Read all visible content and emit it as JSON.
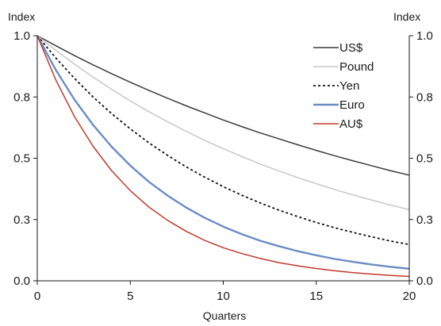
{
  "chart_data": {
    "type": "line",
    "title": "",
    "xlabel": "Quarters",
    "ylabel_left": "Index",
    "ylabel_right": "Index",
    "xlim": [
      0,
      20
    ],
    "ylim": [
      0.0,
      1.0
    ],
    "x_ticks": [
      0,
      5,
      10,
      15,
      20
    ],
    "x_tick_labels": [
      "0",
      "5",
      "10",
      "15",
      "20"
    ],
    "y_ticks": [
      0.0,
      0.25,
      0.5,
      0.75,
      1.0
    ],
    "y_tick_labels": [
      "0.0",
      "0.3",
      "0.5",
      "0.8",
      "1.0"
    ],
    "grid": false,
    "legend_position": "top-right",
    "x": [
      0,
      1,
      2,
      3,
      4,
      5,
      6,
      7,
      8,
      9,
      10,
      11,
      12,
      13,
      14,
      15,
      16,
      17,
      18,
      19,
      20
    ],
    "series": [
      {
        "name": "US$",
        "color": "#3c3c3c",
        "dash": "solid",
        "values": [
          1.0,
          0.959,
          0.919,
          0.881,
          0.845,
          0.81,
          0.777,
          0.745,
          0.714,
          0.685,
          0.656,
          0.629,
          0.603,
          0.579,
          0.555,
          0.532,
          0.51,
          0.489,
          0.469,
          0.449,
          0.431
        ]
      },
      {
        "name": "Pound",
        "color": "#c8c8c8",
        "dash": "solid",
        "values": [
          1.0,
          0.94,
          0.884,
          0.831,
          0.781,
          0.734,
          0.69,
          0.649,
          0.61,
          0.573,
          0.539,
          0.507,
          0.476,
          0.448,
          0.421,
          0.396,
          0.372,
          0.35,
          0.329,
          0.309,
          0.29
        ]
      },
      {
        "name": "Yen",
        "color": "#111111",
        "dash": "dotted",
        "values": [
          1.0,
          0.909,
          0.826,
          0.75,
          0.682,
          0.62,
          0.563,
          0.512,
          0.465,
          0.423,
          0.384,
          0.349,
          0.317,
          0.288,
          0.262,
          0.238,
          0.216,
          0.197,
          0.179,
          0.162,
          0.148
        ]
      },
      {
        "name": "Euro",
        "color": "#6a8cc4",
        "dash": "solid",
        "values": [
          1.0,
          0.86,
          0.739,
          0.636,
          0.547,
          0.47,
          0.404,
          0.348,
          0.299,
          0.257,
          0.221,
          0.19,
          0.163,
          0.141,
          0.121,
          0.104,
          0.089,
          0.077,
          0.066,
          0.057,
          0.049
        ]
      },
      {
        "name": "AU$",
        "color": "#c0392b",
        "dash": "solid",
        "values": [
          1.0,
          0.819,
          0.67,
          0.549,
          0.449,
          0.368,
          0.301,
          0.247,
          0.202,
          0.165,
          0.135,
          0.111,
          0.091,
          0.074,
          0.061,
          0.05,
          0.041,
          0.033,
          0.027,
          0.022,
          0.018
        ]
      }
    ]
  }
}
